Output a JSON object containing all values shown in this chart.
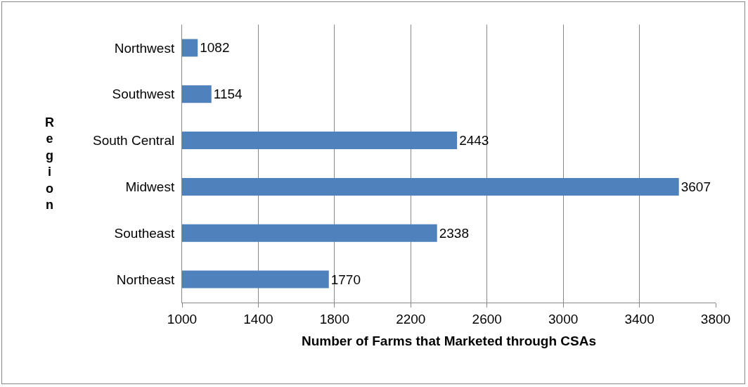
{
  "chart_data": {
    "type": "bar",
    "orientation": "horizontal",
    "xlabel": "Number of Farms that Marketed through CSAs",
    "ylabel": "Region",
    "categories": [
      "Northwest",
      "Southwest",
      "South Central",
      "Midwest",
      "Southeast",
      "Northeast"
    ],
    "values": [
      1082,
      1154,
      2443,
      3607,
      2338,
      1770
    ],
    "color": "#4f81bd",
    "data_labels": true,
    "xlim": [
      1000,
      3800
    ],
    "xticks": [
      1000,
      1400,
      1800,
      2200,
      2600,
      3000,
      3400,
      3800
    ],
    "grid": "x"
  }
}
